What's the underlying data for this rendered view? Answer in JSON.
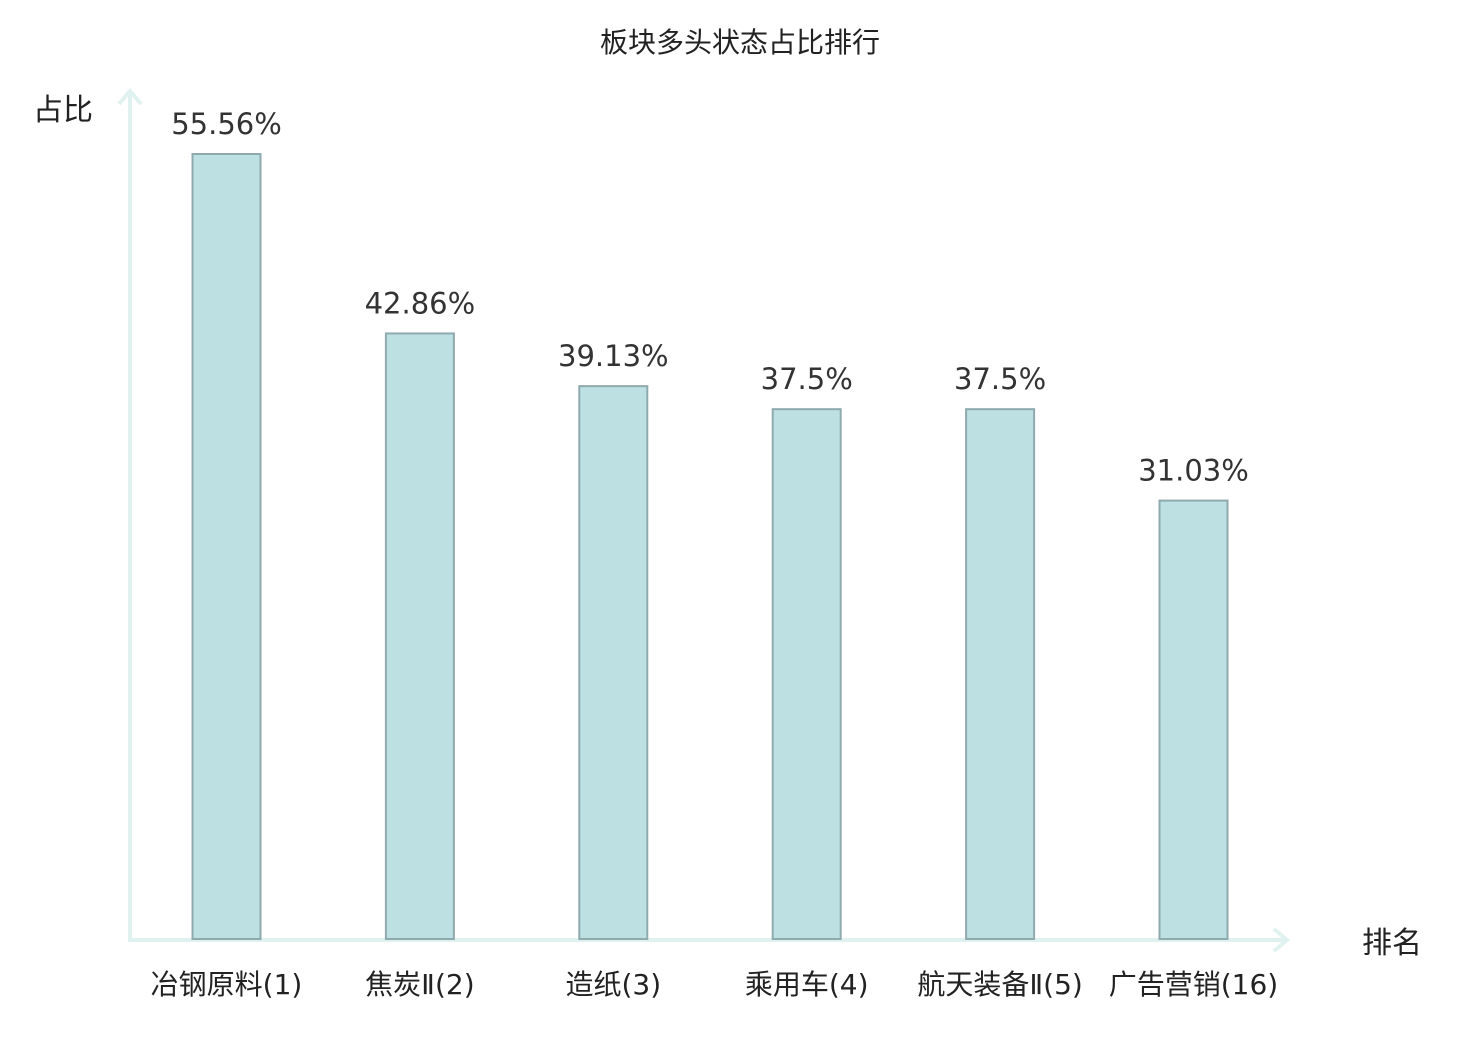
{
  "chart_data": {
    "type": "bar",
    "title": "板块多头状态占比排行",
    "ylabel": "占比",
    "xlabel": "排名",
    "categories": [
      "冶钢原料(1)",
      "焦炭Ⅱ(2)",
      "造纸(3)",
      "乘用车(4)",
      "航天装备Ⅱ(5)",
      "广告营销(16)"
    ],
    "values": [
      55.56,
      42.86,
      39.13,
      37.5,
      37.5,
      31.03
    ],
    "value_labels": [
      "55.56%",
      "42.86%",
      "39.13%",
      "37.5%",
      "37.5%",
      "31.03%"
    ],
    "highlight_index": 5,
    "ylim": [
      0,
      55.56
    ],
    "grid": false,
    "legend": "none"
  },
  "colors": {
    "bar_fill": "#bde0e3",
    "bar_stroke": "#8faaae",
    "axis": "#e0f2ef",
    "text": "#222222",
    "value_text": "#333333",
    "highlight": "#e5201b"
  }
}
